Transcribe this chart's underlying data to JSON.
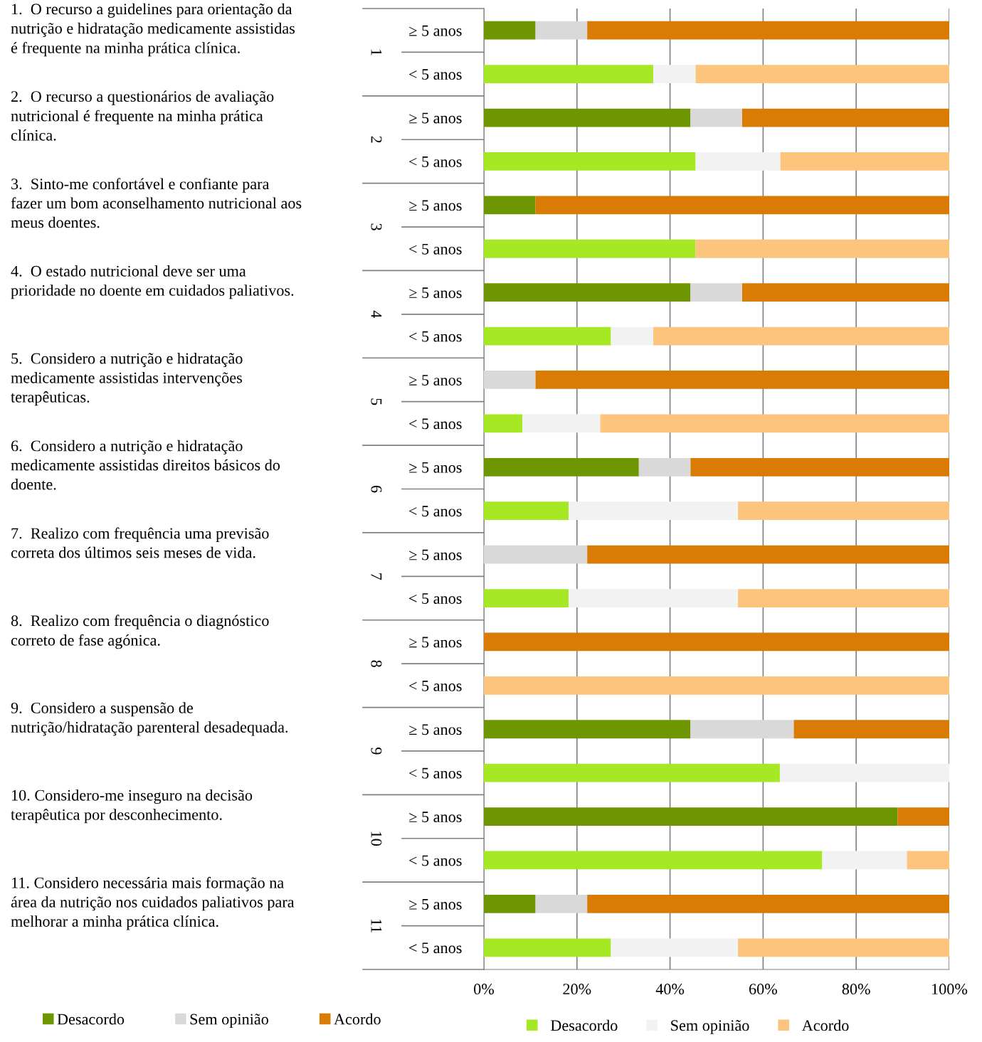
{
  "chart_data": {
    "type": "bar",
    "orientation": "horizontal",
    "stacked": true,
    "categories": [
      "≥ 5 anos",
      "< 5 anos",
      "≥ 5 anos",
      "< 5 anos",
      "≥ 5 anos",
      "< 5 anos",
      "≥ 5 anos",
      "< 5 anos",
      "≥ 5 anos",
      "< 5 anos",
      "≥ 5 anos",
      "< 5 anos",
      "≥ 5 anos",
      "< 5 anos",
      "≥ 5 anos",
      "< 5 anos",
      "≥ 5 anos",
      "< 5 anos",
      "≥ 5 anos",
      "< 5 anos",
      "≥ 5 anos",
      "< 5 anos"
    ],
    "series": [
      {
        "name": "Desacordo",
        "color": "#6e9600",
        "values": [
          11.1,
          null,
          44.4,
          null,
          11.1,
          null,
          44.4,
          null,
          0,
          null,
          33.3,
          null,
          0,
          null,
          0,
          null,
          44.4,
          null,
          88.9,
          null,
          11.1,
          null
        ]
      },
      {
        "name": "Sem opinião",
        "color": "#d9d9d9",
        "values": [
          11.1,
          null,
          11.1,
          null,
          0,
          null,
          11.1,
          null,
          11.1,
          null,
          11.1,
          null,
          22.2,
          null,
          0,
          null,
          22.2,
          null,
          0,
          null,
          11.1,
          null
        ]
      },
      {
        "name": "Acordo",
        "color": "#d97b04",
        "values": [
          77.8,
          null,
          44.5,
          null,
          88.9,
          null,
          44.5,
          null,
          88.9,
          null,
          55.6,
          null,
          77.8,
          null,
          100,
          null,
          33.4,
          null,
          11.1,
          null,
          77.8,
          null
        ]
      },
      {
        "name": "Desacordo",
        "color": "#a6e824",
        "values": [
          null,
          36.4,
          null,
          45.5,
          null,
          45.5,
          null,
          27.3,
          null,
          8.3,
          null,
          18.2,
          null,
          18.2,
          null,
          0,
          null,
          63.6,
          null,
          72.7,
          null,
          27.3
        ]
      },
      {
        "name": "Sem opinião",
        "color": "#f2f2f2",
        "values": [
          null,
          9.1,
          null,
          18.2,
          null,
          0,
          null,
          9.1,
          null,
          16.7,
          null,
          36.4,
          null,
          36.4,
          null,
          0,
          null,
          36.4,
          null,
          18.2,
          null,
          27.3
        ]
      },
      {
        "name": "Acordo",
        "color": "#fcc47c",
        "values": [
          null,
          54.5,
          null,
          36.3,
          null,
          54.5,
          null,
          63.6,
          null,
          75,
          null,
          45.4,
          null,
          45.4,
          null,
          100,
          null,
          0,
          null,
          9.1,
          null,
          45.4
        ]
      }
    ],
    "xlim": [
      0,
      100
    ],
    "xticks": [
      {
        "value": 0,
        "label": "0%"
      },
      {
        "value": 20,
        "label": "20%"
      },
      {
        "value": 40,
        "label": "40%"
      },
      {
        "value": 60,
        "label": "60%"
      },
      {
        "value": 80,
        "label": "80%"
      },
      {
        "value": 100,
        "label": "100%"
      }
    ],
    "grid": "x",
    "legend": "bottom",
    "annotations": [
      "1.  O recurso a guidelines para orientação da\nnutrição e hidratação medicamente assistidas\né frequente na minha prática clínica.",
      "2.  O recurso a questionários de avaliação\nnutricional é frequente na minha prática\nclínica.",
      "3.  Sinto-me confortável e confiante para\nfazer um bom aconselhamento nutricional aos\nmeus doentes.",
      "4.  O estado nutricional deve ser uma\nprioridade no doente em cuidados paliativos.",
      "5.  Considero a nutrição e hidratação\nmedicamente assistidas intervenções\nterapêuticas.",
      "6.  Considero a nutrição e hidratação\nmedicamente assistidas direitos básicos do\ndoente.",
      "7.  Realizo com frequência uma previsão\ncorreta dos últimos seis meses de vida.",
      "8.  Realizo com frequência o diagnóstico\ncorreto de fase agónica.",
      "9.  Considero a suspensão de\nnutrição/hidratação parenteral desadequada.",
      "10. Considero-me inseguro na decisão\nterapêutica por desconhecimento.",
      "11. Considero necessária mais formação na\nárea da nutrição nos cuidados paliativos para\nmelhorar a minha prática clínica.",
      "1",
      "2",
      "3",
      "4",
      "5",
      "6",
      "7",
      "8",
      "9",
      "10",
      "11"
    ]
  }
}
